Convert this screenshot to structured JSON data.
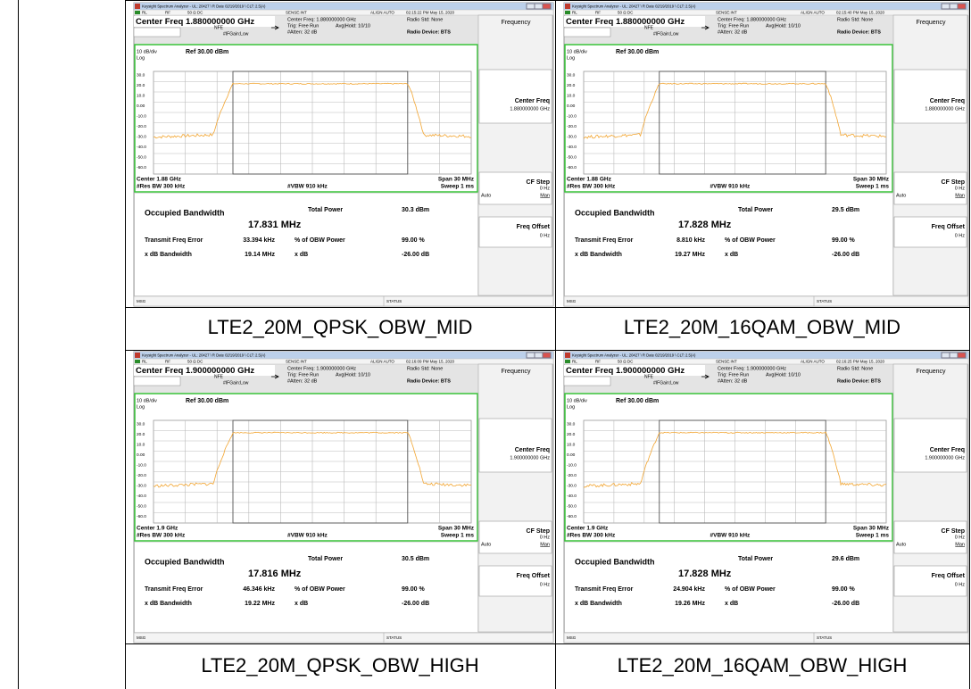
{
  "panels": [
    {
      "caption": "LTE2_20M_QPSK_OBW_MID",
      "title_bar": "Keysight Spectrum Analyzer - UL: 20427 \\ R Date 02/19/2019 \\ CLT: 2.5(A)",
      "rl": "RL",
      "rf": "RF",
      "coupling": "50 Ω DC",
      "sense": "SENSE:INT",
      "align": "ALIGN AUTO",
      "time": "02:15:22 PM May 15, 2020",
      "cf_big": "Center Freq 1.880000000 GHz",
      "cf_small": "Center Freq: 1.880000000 GHz",
      "trig": "Trig: Free Run",
      "avg": "Avg|Hold: 10/10",
      "atten": "#Atten: 32 dB",
      "nfe": "NFE",
      "ifgain": "#IFGain:Low",
      "radio_std": "Radio Std: None",
      "radio_device": "Radio Device: BTS",
      "scale": "10 dB/div",
      "log": "Log",
      "ref": "Ref 30.00 dBm",
      "y_labels": [
        "30.0",
        "20.0",
        "10.0",
        "0.00",
        "-10.0",
        "-20.0",
        "-30.0",
        "-40.0",
        "-50.0",
        "-60.0"
      ],
      "center": "Center 1.88 GHz",
      "res_bw": "#Res BW 300 kHz",
      "vbw": "#VBW 910 kHz",
      "span": "Span 30 MHz",
      "sweep": "Sweep 1 ms",
      "occ_label": "Occupied Bandwidth",
      "obw": "17.831 MHz",
      "tp_label": "Total Power",
      "tp": "30.3 dBm",
      "tfe_label": "Transmit Freq Error",
      "tfe": "33.394 kHz",
      "pct_label": "% of OBW Power",
      "pct": "99.00 %",
      "xbw_label": "x dB Bandwidth",
      "xbw": "19.14 MHz",
      "xdb_label": "x dB",
      "xdb": "-26.00 dB",
      "sk_title": "Frequency",
      "sk_cf": "Center Freq",
      "sk_cf_val": "1.880000000 GHz",
      "sk_step": "CF Step",
      "sk_step_val": "0 Hz",
      "sk_auto": "Auto",
      "sk_man": "Man",
      "sk_off": "Freq Offset",
      "sk_off_val": "0 Hz",
      "msg": "MSG",
      "status": "STATUS"
    },
    {
      "caption": "LTE2_20M_16QAM_OBW_MID",
      "title_bar": "Keysight Spectrum Analyzer - UL: 20427 \\ R Date 02/19/2019 \\ CLT: 2.5(A)",
      "rl": "RL",
      "rf": "RF",
      "coupling": "50 Ω DC",
      "sense": "SENSE:INT",
      "align": "ALIGN AUTO",
      "time": "02:15:40 PM May 15, 2020",
      "cf_big": "Center Freq 1.880000000 GHz",
      "cf_small": "Center Freq: 1.880000000 GHz",
      "trig": "Trig: Free Run",
      "avg": "Avg|Hold: 10/10",
      "atten": "#Atten: 32 dB",
      "nfe": "NFE",
      "ifgain": "#IFGain:Low",
      "radio_std": "Radio Std: None",
      "radio_device": "Radio Device: BTS",
      "scale": "10 dB/div",
      "log": "Log",
      "ref": "Ref 30.00 dBm",
      "y_labels": [
        "30.0",
        "20.0",
        "10.0",
        "0.00",
        "-10.0",
        "-20.0",
        "-30.0",
        "-40.0",
        "-50.0",
        "-60.0"
      ],
      "center": "Center 1.88 GHz",
      "res_bw": "#Res BW 300 kHz",
      "vbw": "#VBW 910 kHz",
      "span": "Span 30 MHz",
      "sweep": "Sweep 1 ms",
      "occ_label": "Occupied Bandwidth",
      "obw": "17.828 MHz",
      "tp_label": "Total Power",
      "tp": "29.5 dBm",
      "tfe_label": "Transmit Freq Error",
      "tfe": "8.810 kHz",
      "pct_label": "% of OBW Power",
      "pct": "99.00 %",
      "xbw_label": "x dB Bandwidth",
      "xbw": "19.27 MHz",
      "xdb_label": "x dB",
      "xdb": "-26.00 dB",
      "sk_title": "Frequency",
      "sk_cf": "Center Freq",
      "sk_cf_val": "1.880000000 GHz",
      "sk_step": "CF Step",
      "sk_step_val": "0 Hz",
      "sk_auto": "Auto",
      "sk_man": "Man",
      "sk_off": "Freq Offset",
      "sk_off_val": "0 Hz",
      "msg": "MSG",
      "status": "STATUS"
    },
    {
      "caption": "LTE2_20M_QPSK_OBW_HIGH",
      "title_bar": "Keysight Spectrum Analyzer - UL: 20427 \\ R Date 02/19/2019 \\ CLT: 2.5(A)",
      "rl": "RL",
      "rf": "RF",
      "coupling": "50 Ω DC",
      "sense": "SENSE:INT",
      "align": "ALIGN AUTO",
      "time": "02:16:09 PM May 15, 2020",
      "cf_big": "Center Freq 1.900000000 GHz",
      "cf_small": "Center Freq: 1.900000000 GHz",
      "trig": "Trig: Free Run",
      "avg": "Avg|Hold: 10/10",
      "atten": "#Atten: 32 dB",
      "nfe": "NFE",
      "ifgain": "#IFGain:Low",
      "radio_std": "Radio Std: None",
      "radio_device": "Radio Device: BTS",
      "scale": "10 dB/div",
      "log": "Log",
      "ref": "Ref 30.00 dBm",
      "y_labels": [
        "30.0",
        "20.0",
        "10.0",
        "0.00",
        "-10.0",
        "-20.0",
        "-30.0",
        "-40.0",
        "-50.0",
        "-60.0"
      ],
      "center": "Center 1.9 GHz",
      "res_bw": "#Res BW 300 kHz",
      "vbw": "#VBW 910 kHz",
      "span": "Span 30 MHz",
      "sweep": "Sweep 1 ms",
      "occ_label": "Occupied Bandwidth",
      "obw": "17.816 MHz",
      "tp_label": "Total Power",
      "tp": "30.5 dBm",
      "tfe_label": "Transmit Freq Error",
      "tfe": "46.346 kHz",
      "pct_label": "% of OBW Power",
      "pct": "99.00 %",
      "xbw_label": "x dB Bandwidth",
      "xbw": "19.22 MHz",
      "xdb_label": "x dB",
      "xdb": "-26.00 dB",
      "sk_title": "Frequency",
      "sk_cf": "Center Freq",
      "sk_cf_val": "1.900000000 GHz",
      "sk_step": "CF Step",
      "sk_step_val": "0 Hz",
      "sk_auto": "Auto",
      "sk_man": "Man",
      "sk_off": "Freq Offset",
      "sk_off_val": "0 Hz",
      "msg": "MSG",
      "status": "STATUS"
    },
    {
      "caption": "LTE2_20M_16QAM_OBW_HIGH",
      "title_bar": "Keysight Spectrum Analyzer - UL: 20427 \\ R Date 02/19/2019 \\ CLT: 2.5(A)",
      "rl": "RL",
      "rf": "RF",
      "coupling": "50 Ω DC",
      "sense": "SENSE:INT",
      "align": "ALIGN AUTO",
      "time": "02:16:25 PM May 15, 2020",
      "cf_big": "Center Freq 1.900000000 GHz",
      "cf_small": "Center Freq: 1.900000000 GHz",
      "trig": "Trig: Free Run",
      "avg": "Avg|Hold: 10/10",
      "atten": "#Atten: 32 dB",
      "nfe": "NFE",
      "ifgain": "#IFGain:Low",
      "radio_std": "Radio Std: None",
      "radio_device": "Radio Device: BTS",
      "scale": "10 dB/div",
      "log": "Log",
      "ref": "Ref 30.00 dBm",
      "y_labels": [
        "30.0",
        "20.0",
        "10.0",
        "0.00",
        "-10.0",
        "-20.0",
        "-30.0",
        "-40.0",
        "-50.0",
        "-60.0"
      ],
      "center": "Center 1.9 GHz",
      "res_bw": "#Res BW 300 kHz",
      "vbw": "#VBW 910 kHz",
      "span": "Span 30 MHz",
      "sweep": "Sweep 1 ms",
      "occ_label": "Occupied Bandwidth",
      "obw": "17.828 MHz",
      "tp_label": "Total Power",
      "tp": "29.6 dBm",
      "tfe_label": "Transmit Freq Error",
      "tfe": "24.904 kHz",
      "pct_label": "% of OBW Power",
      "pct": "99.00 %",
      "xbw_label": "x dB Bandwidth",
      "xbw": "19.26 MHz",
      "xdb_label": "x dB",
      "xdb": "-26.00 dB",
      "sk_title": "Frequency",
      "sk_cf": "Center Freq",
      "sk_cf_val": "1.900000000 GHz",
      "sk_step": "CF Step",
      "sk_step_val": "0 Hz",
      "sk_auto": "Auto",
      "sk_man": "Man",
      "sk_off": "Freq Offset",
      "sk_off_val": "0 Hz",
      "msg": "MSG",
      "status": "STATUS"
    }
  ]
}
